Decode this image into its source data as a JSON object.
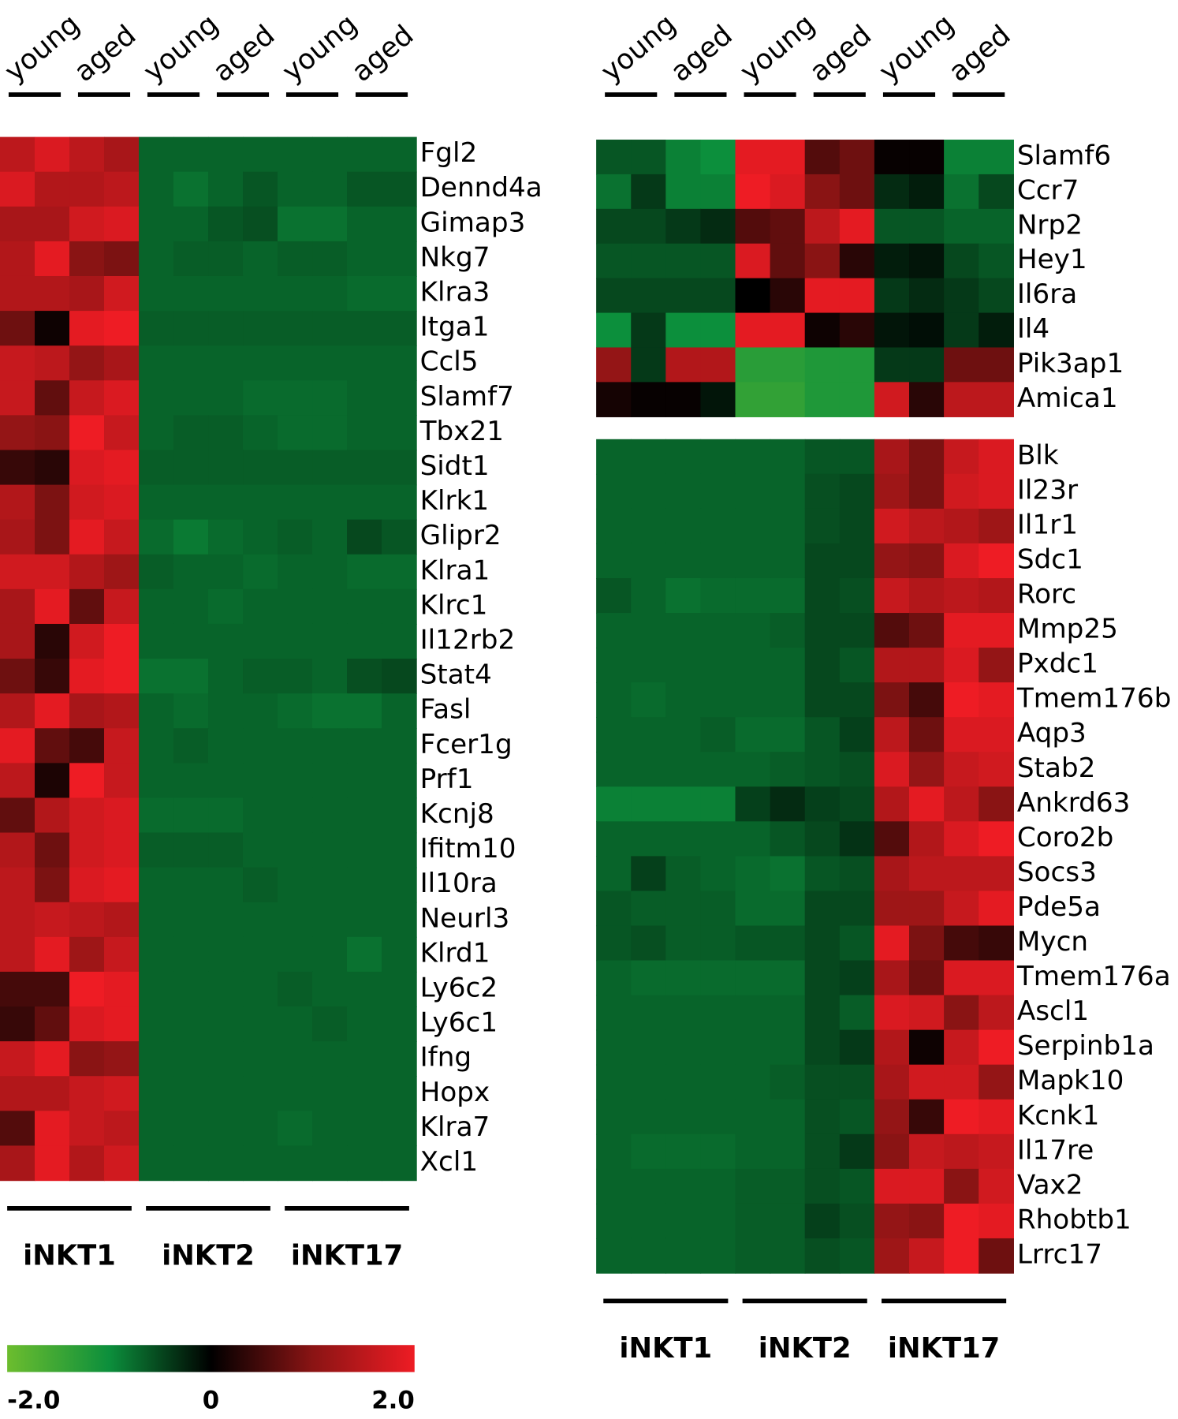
{
  "chart_data": [
    {
      "type": "heatmap",
      "columns": [
        "young",
        "aged",
        "young",
        "aged",
        "young",
        "aged"
      ],
      "groups": [
        "iNKT1",
        "iNKT2",
        "iNKT17"
      ],
      "rows": [
        "Fgl2",
        "Dennd4a",
        "Gimap3",
        "Nkg7",
        "Klra3",
        "Itga1",
        "Ccl5",
        "Slamf7",
        "Tbx21",
        "Sidt1",
        "Klrk1",
        "Glipr2",
        "Klra1",
        "Klrc1",
        "Il12rb2",
        "Stat4",
        "Fasl",
        "Fcer1g",
        "Prf1",
        "Kcnj8",
        "Ifitm10",
        "Il10ra",
        "Neurl3",
        "Klrd1",
        "Ly6c2",
        "Ly6c1",
        "Ifng",
        "Hopx",
        "Klra7",
        "Xcl1"
      ],
      "values": [
        [
          1.5,
          1.8,
          1.5,
          1.3,
          -0.7,
          -0.7,
          -0.7,
          -0.7,
          -0.7,
          -0.7,
          -0.7,
          -0.7
        ],
        [
          1.8,
          1.4,
          1.4,
          1.5,
          -0.7,
          -0.8,
          -0.7,
          -0.6,
          -0.7,
          -0.7,
          -0.6,
          -0.6
        ],
        [
          1.3,
          1.3,
          1.7,
          1.8,
          -0.7,
          -0.7,
          -0.6,
          -0.55,
          -0.8,
          -0.8,
          -0.7,
          -0.7
        ],
        [
          1.4,
          1.9,
          1.0,
          0.9,
          -0.7,
          -0.65,
          -0.65,
          -0.7,
          -0.65,
          -0.65,
          -0.7,
          -0.7
        ],
        [
          1.4,
          1.4,
          1.3,
          1.7,
          -0.7,
          -0.7,
          -0.7,
          -0.7,
          -0.7,
          -0.7,
          -0.75,
          -0.75
        ],
        [
          0.8,
          0.1,
          1.9,
          2.0,
          -0.65,
          -0.65,
          -0.65,
          -0.65,
          -0.65,
          -0.65,
          -0.65,
          -0.65
        ],
        [
          1.6,
          1.5,
          1.1,
          1.3,
          -0.7,
          -0.7,
          -0.7,
          -0.7,
          -0.7,
          -0.7,
          -0.7,
          -0.7
        ],
        [
          1.6,
          0.7,
          1.6,
          1.8,
          -0.7,
          -0.7,
          -0.7,
          -0.75,
          -0.75,
          -0.75,
          -0.7,
          -0.7
        ],
        [
          1.1,
          1.0,
          2.0,
          1.6,
          -0.7,
          -0.65,
          -0.65,
          -0.7,
          -0.75,
          -0.75,
          -0.7,
          -0.7
        ],
        [
          0.4,
          0.3,
          1.8,
          1.9,
          -0.65,
          -0.65,
          -0.65,
          -0.65,
          -0.65,
          -0.65,
          -0.65,
          -0.65
        ],
        [
          1.4,
          0.9,
          1.7,
          1.8,
          -0.7,
          -0.7,
          -0.7,
          -0.7,
          -0.7,
          -0.7,
          -0.7,
          -0.7
        ],
        [
          1.3,
          0.9,
          1.9,
          1.6,
          -0.75,
          -0.85,
          -0.75,
          -0.7,
          -0.65,
          -0.7,
          -0.5,
          -0.6
        ],
        [
          1.7,
          1.7,
          1.4,
          1.2,
          -0.65,
          -0.7,
          -0.7,
          -0.75,
          -0.7,
          -0.7,
          -0.75,
          -0.75
        ],
        [
          1.3,
          1.9,
          0.7,
          1.6,
          -0.7,
          -0.7,
          -0.75,
          -0.7,
          -0.7,
          -0.7,
          -0.7,
          -0.7
        ],
        [
          1.3,
          0.3,
          1.7,
          2.0,
          -0.7,
          -0.7,
          -0.7,
          -0.7,
          -0.7,
          -0.7,
          -0.7,
          -0.7
        ],
        [
          0.8,
          0.4,
          1.9,
          2.0,
          -0.8,
          -0.8,
          -0.7,
          -0.65,
          -0.65,
          -0.7,
          -0.55,
          -0.5
        ],
        [
          1.4,
          1.9,
          1.3,
          1.4,
          -0.7,
          -0.75,
          -0.7,
          -0.7,
          -0.75,
          -0.8,
          -0.8,
          -0.7
        ],
        [
          1.9,
          0.7,
          0.5,
          1.6,
          -0.7,
          -0.65,
          -0.7,
          -0.7,
          -0.7,
          -0.7,
          -0.7,
          -0.7
        ],
        [
          1.5,
          0.2,
          2.0,
          1.6,
          -0.7,
          -0.7,
          -0.7,
          -0.7,
          -0.7,
          -0.7,
          -0.7,
          -0.7
        ],
        [
          0.7,
          1.4,
          1.7,
          1.8,
          -0.75,
          -0.75,
          -0.75,
          -0.7,
          -0.7,
          -0.7,
          -0.7,
          -0.7
        ],
        [
          1.4,
          0.8,
          1.7,
          1.8,
          -0.65,
          -0.65,
          -0.65,
          -0.7,
          -0.7,
          -0.7,
          -0.7,
          -0.7
        ],
        [
          1.5,
          0.9,
          1.8,
          1.9,
          -0.7,
          -0.7,
          -0.7,
          -0.65,
          -0.7,
          -0.7,
          -0.7,
          -0.7
        ],
        [
          1.5,
          1.6,
          1.5,
          1.4,
          -0.7,
          -0.7,
          -0.7,
          -0.7,
          -0.7,
          -0.7,
          -0.7,
          -0.7
        ],
        [
          1.5,
          1.9,
          1.2,
          1.6,
          -0.7,
          -0.7,
          -0.7,
          -0.7,
          -0.7,
          -0.7,
          -0.8,
          -0.7
        ],
        [
          0.5,
          0.5,
          2.0,
          1.9,
          -0.7,
          -0.7,
          -0.7,
          -0.7,
          -0.65,
          -0.7,
          -0.7,
          -0.7
        ],
        [
          0.4,
          0.7,
          1.8,
          1.9,
          -0.7,
          -0.7,
          -0.7,
          -0.7,
          -0.7,
          -0.65,
          -0.7,
          -0.7
        ],
        [
          1.6,
          1.9,
          1.0,
          1.1,
          -0.7,
          -0.7,
          -0.7,
          -0.7,
          -0.7,
          -0.7,
          -0.7,
          -0.7
        ],
        [
          1.4,
          1.4,
          1.6,
          1.7,
          -0.7,
          -0.7,
          -0.7,
          -0.7,
          -0.7,
          -0.7,
          -0.7,
          -0.7
        ],
        [
          0.6,
          1.9,
          1.6,
          1.5,
          -0.7,
          -0.7,
          -0.7,
          -0.7,
          -0.75,
          -0.7,
          -0.7,
          -0.7
        ],
        [
          1.3,
          1.9,
          1.4,
          1.7,
          -0.7,
          -0.7,
          -0.7,
          -0.7,
          -0.7,
          -0.7,
          -0.7,
          -0.7
        ]
      ],
      "zlim": [
        -2,
        2
      ],
      "zticks": [
        {
          "value": -2,
          "label": "-2.0"
        },
        0,
        {
          "value": 2,
          "label": "2.0"
        }
      ],
      "colors": [
        "#6cbd2e",
        "#0c8f3c",
        "#000000",
        "#8a1414",
        "#ee1c24"
      ]
    },
    {
      "type": "heatmap",
      "columns": [
        "young",
        "aged",
        "young",
        "aged",
        "young",
        "aged"
      ],
      "rows": [
        "Slamf6",
        "Ccr7",
        "Nrp2",
        "Hey1",
        "Il6ra",
        "Il4",
        "Pik3ap1",
        "Amica1"
      ],
      "values": [
        [
          -0.6,
          -0.6,
          -0.9,
          -1.0,
          1.9,
          1.9,
          0.6,
          0.8,
          0.05,
          0.05,
          -0.9,
          -0.9
        ],
        [
          -0.8,
          -0.4,
          -0.9,
          -0.9,
          2.0,
          1.8,
          1.0,
          0.8,
          -0.3,
          -0.2,
          -0.8,
          -0.5
        ],
        [
          -0.5,
          -0.5,
          -0.4,
          -0.3,
          0.6,
          0.7,
          1.5,
          1.9,
          -0.6,
          -0.6,
          -0.7,
          -0.7
        ],
        [
          -0.6,
          -0.6,
          -0.6,
          -0.6,
          1.8,
          0.7,
          1.0,
          0.3,
          -0.2,
          -0.15,
          -0.5,
          -0.6
        ],
        [
          -0.5,
          -0.5,
          -0.5,
          -0.5,
          0.0,
          0.3,
          1.9,
          1.9,
          -0.4,
          -0.3,
          -0.4,
          -0.5
        ],
        [
          -1.0,
          -0.4,
          -1.0,
          -1.0,
          1.9,
          1.9,
          0.1,
          0.3,
          -0.15,
          -0.1,
          -0.4,
          -0.2
        ],
        [
          1.1,
          -0.4,
          1.4,
          1.4,
          -1.3,
          -1.3,
          -1.2,
          -1.2,
          -0.4,
          -0.4,
          0.8,
          0.8
        ],
        [
          0.15,
          0.05,
          0.05,
          -0.15,
          -1.4,
          -1.4,
          -1.2,
          -1.2,
          1.7,
          0.3,
          1.5,
          1.5
        ]
      ]
    },
    {
      "type": "heatmap",
      "groups": [
        "iNKT1",
        "iNKT2",
        "iNKT17"
      ],
      "rows": [
        "Blk",
        "Il23r",
        "Il1r1",
        "Sdc1",
        "Rorc",
        "Mmp25",
        "Pxdc1",
        "Tmem176b",
        "Aqp3",
        "Stab2",
        "Ankrd63",
        "Coro2b",
        "Socs3",
        "Pde5a",
        "Mycn",
        "Tmem176a",
        "Ascl1",
        "Serpinb1a",
        "Mapk10",
        "Kcnk1",
        "Il17re",
        "Vax2",
        "Rhobtb1",
        "Lrrc17"
      ],
      "values": [
        [
          -0.7,
          -0.7,
          -0.7,
          -0.7,
          -0.7,
          -0.7,
          -0.6,
          -0.6,
          1.3,
          0.9,
          1.6,
          1.8
        ],
        [
          -0.7,
          -0.7,
          -0.7,
          -0.7,
          -0.7,
          -0.7,
          -0.55,
          -0.5,
          1.2,
          0.9,
          1.7,
          1.8
        ],
        [
          -0.7,
          -0.7,
          -0.7,
          -0.7,
          -0.7,
          -0.7,
          -0.55,
          -0.5,
          1.7,
          1.5,
          1.4,
          1.2
        ],
        [
          -0.7,
          -0.7,
          -0.7,
          -0.7,
          -0.7,
          -0.7,
          -0.5,
          -0.5,
          1.1,
          1.0,
          1.8,
          2.0
        ],
        [
          -0.6,
          -0.7,
          -0.8,
          -0.75,
          -0.75,
          -0.75,
          -0.5,
          -0.55,
          1.6,
          1.4,
          1.5,
          1.4
        ],
        [
          -0.7,
          -0.7,
          -0.7,
          -0.7,
          -0.7,
          -0.65,
          -0.5,
          -0.5,
          0.6,
          0.8,
          1.9,
          1.9
        ],
        [
          -0.7,
          -0.7,
          -0.7,
          -0.7,
          -0.7,
          -0.7,
          -0.5,
          -0.6,
          1.4,
          1.4,
          1.8,
          1.1
        ],
        [
          -0.7,
          -0.75,
          -0.7,
          -0.7,
          -0.7,
          -0.7,
          -0.5,
          -0.5,
          0.9,
          0.5,
          2.0,
          1.9
        ],
        [
          -0.7,
          -0.7,
          -0.7,
          -0.65,
          -0.75,
          -0.75,
          -0.6,
          -0.45,
          1.5,
          0.8,
          1.8,
          1.8
        ],
        [
          -0.7,
          -0.7,
          -0.7,
          -0.7,
          -0.7,
          -0.65,
          -0.6,
          -0.55,
          1.8,
          1.1,
          1.6,
          1.7
        ],
        [
          -0.9,
          -0.9,
          -0.9,
          -0.9,
          -0.45,
          -0.3,
          -0.45,
          -0.5,
          1.4,
          1.9,
          1.5,
          1.0
        ],
        [
          -0.7,
          -0.7,
          -0.7,
          -0.7,
          -0.7,
          -0.6,
          -0.5,
          -0.35,
          0.6,
          1.4,
          1.8,
          2.0
        ],
        [
          -0.7,
          -0.45,
          -0.65,
          -0.7,
          -0.75,
          -0.8,
          -0.6,
          -0.55,
          1.3,
          1.5,
          1.5,
          1.5
        ],
        [
          -0.6,
          -0.65,
          -0.65,
          -0.65,
          -0.75,
          -0.75,
          -0.5,
          -0.5,
          1.2,
          1.2,
          1.6,
          1.9
        ],
        [
          -0.6,
          -0.55,
          -0.65,
          -0.65,
          -0.6,
          -0.6,
          -0.5,
          -0.6,
          1.9,
          0.9,
          0.5,
          0.4
        ],
        [
          -0.7,
          -0.75,
          -0.75,
          -0.75,
          -0.75,
          -0.75,
          -0.5,
          -0.45,
          1.3,
          0.8,
          1.8,
          1.8
        ],
        [
          -0.7,
          -0.7,
          -0.7,
          -0.7,
          -0.7,
          -0.7,
          -0.5,
          -0.65,
          1.8,
          1.7,
          1.0,
          1.5
        ],
        [
          -0.7,
          -0.7,
          -0.7,
          -0.7,
          -0.7,
          -0.7,
          -0.5,
          -0.4,
          1.4,
          0.1,
          1.6,
          2.0
        ],
        [
          -0.7,
          -0.7,
          -0.7,
          -0.7,
          -0.7,
          -0.65,
          -0.55,
          -0.55,
          1.3,
          1.7,
          1.7,
          1.1
        ],
        [
          -0.7,
          -0.7,
          -0.7,
          -0.7,
          -0.7,
          -0.7,
          -0.55,
          -0.6,
          1.1,
          0.4,
          2.0,
          1.9
        ],
        [
          -0.7,
          -0.75,
          -0.75,
          -0.75,
          -0.7,
          -0.7,
          -0.55,
          -0.4,
          1.0,
          1.6,
          1.5,
          1.6
        ],
        [
          -0.7,
          -0.7,
          -0.7,
          -0.7,
          -0.65,
          -0.65,
          -0.55,
          -0.6,
          1.8,
          1.8,
          1.0,
          1.7
        ],
        [
          -0.7,
          -0.7,
          -0.7,
          -0.7,
          -0.65,
          -0.65,
          -0.45,
          -0.55,
          1.1,
          1.0,
          2.0,
          1.9
        ],
        [
          -0.7,
          -0.7,
          -0.7,
          -0.7,
          -0.65,
          -0.65,
          -0.55,
          -0.6,
          1.2,
          1.6,
          2.0,
          0.8
        ]
      ]
    }
  ]
}
